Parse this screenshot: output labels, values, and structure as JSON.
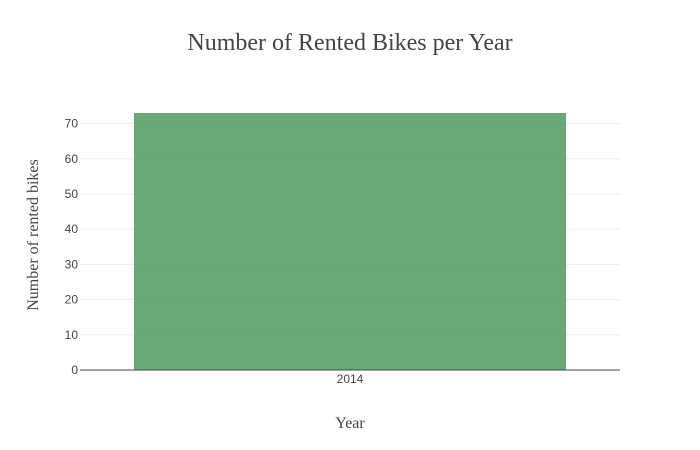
{
  "chart_data": {
    "type": "bar",
    "title": "Number of Rented Bikes per Year",
    "xlabel": "Year",
    "ylabel": "Number of rented bikes",
    "categories": [
      "2014"
    ],
    "values": [
      73
    ],
    "ylim": [
      0,
      73
    ],
    "yticks": [
      0,
      10,
      20,
      30,
      40,
      50,
      60,
      70
    ],
    "grid": true,
    "bar_color": "#5a9e6a",
    "gridline_color": "#eeeeee",
    "axis_line_color": "#444444",
    "text_color": "#444444"
  }
}
